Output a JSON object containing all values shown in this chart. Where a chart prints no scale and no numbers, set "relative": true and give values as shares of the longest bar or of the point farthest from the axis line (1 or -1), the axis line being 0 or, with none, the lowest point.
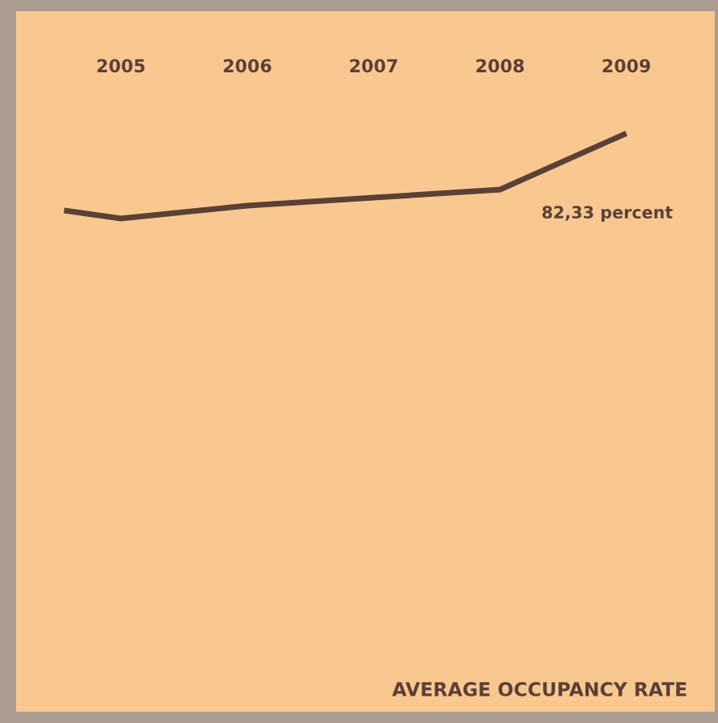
{
  "chart_data": {
    "type": "line",
    "title": "AVERAGE OCCUPANCY RATE",
    "relative": true,
    "x": [
      2004.55,
      2005,
      2006,
      2007,
      2008,
      2009
    ],
    "xlim": [
      2004.17,
      2009.7
    ],
    "xticks": [
      2005,
      2006,
      2007,
      2008,
      2009
    ],
    "series": [
      {
        "color": "#5b4036",
        "values": [
          0.094,
          0,
          0.151,
          0.245,
          0.34,
          1
        ]
      }
    ],
    "annotations": [
      "82,33 percent"
    ],
    "grid": false,
    "legend": false,
    "marker": "none",
    "line_style": "solid"
  }
}
